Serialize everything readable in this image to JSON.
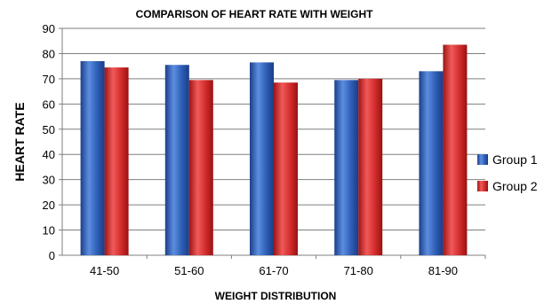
{
  "chart_data": {
    "type": "bar",
    "title": "COMPARISON OF HEART RATE WITH WEIGHT",
    "xlabel": "WEIGHT DISTRIBUTION",
    "ylabel": "HEART RATE",
    "categories": [
      "41-50",
      "51-60",
      "61-70",
      "71-80",
      "81-90"
    ],
    "series": [
      {
        "name": "Group 1",
        "values": [
          77,
          75.5,
          76.5,
          69.5,
          73
        ],
        "color": "#2f5fb8"
      },
      {
        "name": "Group 2",
        "values": [
          74.5,
          69.5,
          68.5,
          70,
          83.5
        ],
        "color": "#d62a2a"
      }
    ],
    "ylim": [
      0,
      90
    ],
    "yticks": [
      0,
      10,
      20,
      30,
      40,
      50,
      60,
      70,
      80,
      90
    ],
    "grid": true,
    "legend_position": "right"
  }
}
